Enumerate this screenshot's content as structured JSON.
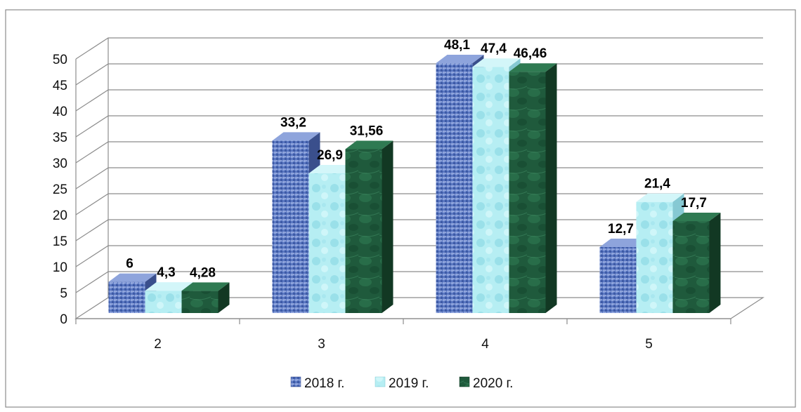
{
  "chart_data": {
    "type": "bar",
    "categories": [
      "2",
      "3",
      "4",
      "5"
    ],
    "series": [
      {
        "name": "2018 г.",
        "values": [
          6,
          33.2,
          48.1,
          12.7
        ],
        "labels": [
          "6",
          "33,2",
          "48,1",
          "12,7"
        ],
        "color": "#5b78c2"
      },
      {
        "name": "2019 г.",
        "values": [
          4.3,
          26.9,
          47.4,
          21.4
        ],
        "labels": [
          "4,3",
          "26,9",
          "47,4",
          "21,4"
        ],
        "color": "#b6eef3"
      },
      {
        "name": "2020 г.",
        "values": [
          4.28,
          31.56,
          46.46,
          17.7
        ],
        "labels": [
          "4,28",
          "31,56",
          "46,46",
          "17,7"
        ],
        "color": "#1f5a3c"
      }
    ],
    "title": "",
    "xlabel": "",
    "ylabel": "",
    "ylim": [
      0,
      50
    ],
    "yticks": [
      "0",
      "5",
      "10",
      "15",
      "20",
      "25",
      "30",
      "35",
      "40",
      "45",
      "50"
    ],
    "grid": true,
    "legend_position": "bottom",
    "style": "3d-clustered-column"
  }
}
